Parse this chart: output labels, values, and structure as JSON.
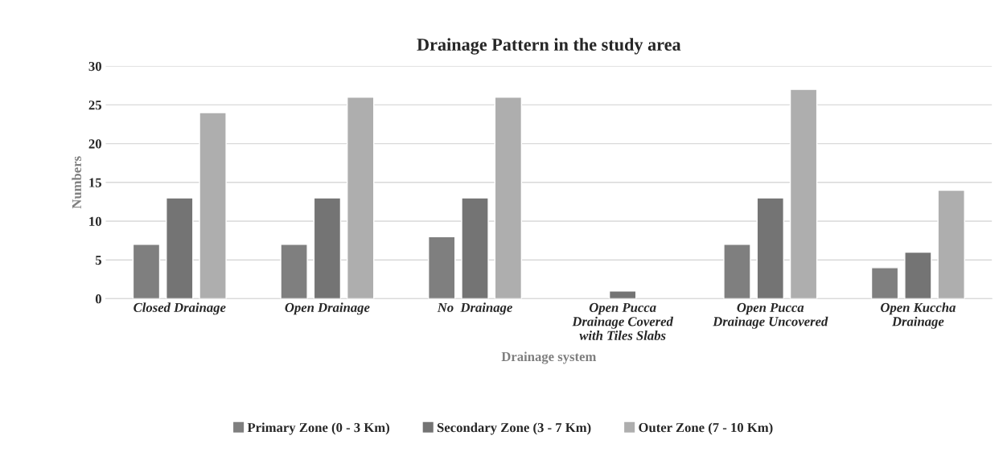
{
  "chart_data": {
    "type": "bar",
    "title": "Drainage Pattern in the study area",
    "xlabel": "Drainage system",
    "ylabel": "Numbers",
    "categories": [
      "Closed Drainage",
      "Open Drainage",
      "No  Drainage",
      "Open Pucca\nDrainage Covered\nwith Tiles Slabs",
      "Open Pucca\nDrainage Uncovered",
      "Open Kuccha\nDrainage"
    ],
    "series": [
      {
        "name": "Primary Zone (0 - 3 Km)",
        "color": "#7f7f7f",
        "values": [
          7,
          7,
          8,
          null,
          7,
          4
        ]
      },
      {
        "name": "Secondary Zone (3 - 7 Km)",
        "color": "#747474",
        "values": [
          13,
          13,
          13,
          1,
          13,
          6
        ]
      },
      {
        "name": "Outer Zone (7 - 10 Km)",
        "color": "#aeaeae",
        "values": [
          24,
          26,
          26,
          null,
          27,
          14
        ]
      }
    ],
    "ylim": [
      0,
      30
    ],
    "yticks": [
      0,
      5,
      10,
      15,
      20,
      25,
      30
    ],
    "grid": "y",
    "legend": "bottom"
  }
}
